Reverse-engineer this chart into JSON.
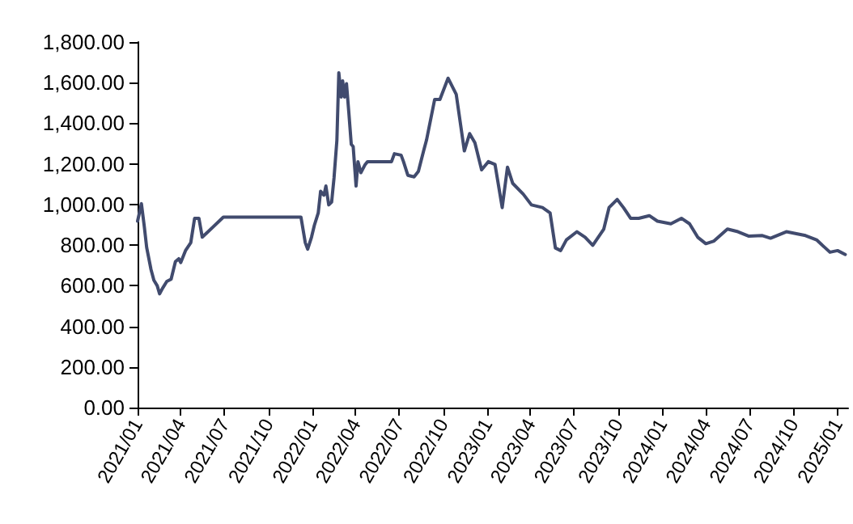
{
  "chart_data": {
    "type": "line",
    "x": [
      "2021-01-01",
      "2021-01-09",
      "2021-01-15",
      "2021-01-20",
      "2021-01-29",
      "2021-02-04",
      "2021-02-11",
      "2021-02-16",
      "2021-02-22",
      "2021-03-03",
      "2021-03-12",
      "2021-03-21",
      "2021-03-28",
      "2021-04-01",
      "2021-04-11",
      "2021-04-22",
      "2021-04-30",
      "2021-05-09",
      "2021-05-16",
      "2021-06-29",
      "2021-12-08",
      "2021-12-17",
      "2021-12-22",
      "2021-12-30",
      "2022-01-05",
      "2022-01-13",
      "2022-01-18",
      "2022-01-25",
      "2022-01-29",
      "2022-02-04",
      "2022-02-10",
      "2022-02-15",
      "2022-02-21",
      "2022-02-25",
      "2022-03-02",
      "2022-03-05",
      "2022-03-09",
      "2022-03-13",
      "2022-03-18",
      "2022-03-23",
      "2022-03-27",
      "2022-04-02",
      "2022-04-06",
      "2022-04-12",
      "2022-04-21",
      "2022-04-26",
      "2022-06-15",
      "2022-06-21",
      "2022-07-05",
      "2022-07-10",
      "2022-07-19",
      "2022-08-01",
      "2022-08-10",
      "2022-08-21",
      "2022-08-27",
      "2022-09-13",
      "2022-09-24",
      "2022-10-11",
      "2022-10-28",
      "2022-11-14",
      "2022-11-25",
      "2022-12-06",
      "2022-12-20",
      "2023-01-03",
      "2023-01-17",
      "2023-02-01",
      "2023-02-12",
      "2023-02-23",
      "2023-03-17",
      "2023-04-03",
      "2023-04-26",
      "2023-05-12",
      "2023-05-23",
      "2023-06-03",
      "2023-06-15",
      "2023-07-07",
      "2023-07-24",
      "2023-08-09",
      "2023-09-01",
      "2023-09-12",
      "2023-09-29",
      "2023-10-12",
      "2023-10-27",
      "2023-11-13",
      "2023-12-05",
      "2023-12-22",
      "2024-01-19",
      "2024-02-10",
      "2024-02-27",
      "2024-03-15",
      "2024-04-01",
      "2024-04-18",
      "2024-05-16",
      "2024-06-07",
      "2024-06-30",
      "2024-07-28",
      "2024-08-14",
      "2024-09-16",
      "2024-10-26",
      "2024-11-18",
      "2024-12-16",
      "2025-01-01",
      "2025-01-17"
    ],
    "series": [
      {
        "color": "#414b6e",
        "values": [
          918,
          1004,
          892,
          788,
          680,
          627,
          600,
          560,
          587,
          621,
          632,
          719,
          733,
          714,
          773,
          812,
          932,
          932,
          839,
          938,
          938,
          812,
          780,
          839,
          898,
          958,
          1065,
          1046,
          1091,
          998,
          1012,
          1131,
          1317,
          1649,
          1529,
          1609,
          1529,
          1595,
          1450,
          1296,
          1285,
          1091,
          1211,
          1157,
          1197,
          1211,
          1211,
          1250,
          1243,
          1211,
          1144,
          1136,
          1163,
          1264,
          1317,
          1517,
          1517,
          1622,
          1543,
          1264,
          1349,
          1304,
          1171,
          1211,
          1197,
          985,
          1184,
          1104,
          1051,
          998,
          985,
          958,
          786,
          773,
          826,
          866,
          839,
          799,
          879,
          985,
          1025,
          985,
          932,
          932,
          945,
          918,
          905,
          932,
          905,
          839,
          807,
          820,
          879,
          866,
          844,
          847,
          834,
          866,
          847,
          826,
          765,
          773,
          754
        ]
      }
    ],
    "xlim": [
      "2021-01-01",
      "2025-01-23"
    ],
    "xticks": [
      {
        "value": "2021-01",
        "label": "2021/01"
      },
      {
        "value": "2021-04",
        "label": "2021/04"
      },
      {
        "value": "2021-07",
        "label": "2021/07"
      },
      {
        "value": "2021-10",
        "label": "2021/10"
      },
      {
        "value": "2022-01",
        "label": "2022/01"
      },
      {
        "value": "2022-04",
        "label": "2022/04"
      },
      {
        "value": "2022-07",
        "label": "2022/07"
      },
      {
        "value": "2022-10",
        "label": "2022/10"
      },
      {
        "value": "2023-01",
        "label": "2023/01"
      },
      {
        "value": "2023-04",
        "label": "2023/04"
      },
      {
        "value": "2023-07",
        "label": "2023/07"
      },
      {
        "value": "2023-10",
        "label": "2023/10"
      },
      {
        "value": "2024-01",
        "label": "2024/01"
      },
      {
        "value": "2024-04",
        "label": "2024/04"
      },
      {
        "value": "2024-07",
        "label": "2024/07"
      },
      {
        "value": "2024-10",
        "label": "2024/10"
      },
      {
        "value": "2025-01",
        "label": "2025/01"
      }
    ],
    "ylim": [
      0,
      1800
    ],
    "yticks": [
      {
        "value": 0,
        "label": "0.00"
      },
      {
        "value": 200,
        "label": "200.00"
      },
      {
        "value": 400,
        "label": "400.00"
      },
      {
        "value": 600,
        "label": "600.00"
      },
      {
        "value": 800,
        "label": "800.00"
      },
      {
        "value": 1000,
        "label": "1,000.00"
      },
      {
        "value": 1200,
        "label": "1,200.00"
      },
      {
        "value": 1400,
        "label": "1,400.00"
      },
      {
        "value": 1600,
        "label": "1,600.00"
      },
      {
        "value": 1800,
        "label": "1,800.00"
      }
    ],
    "grid": false,
    "marker": "none",
    "line_style": "solid"
  }
}
